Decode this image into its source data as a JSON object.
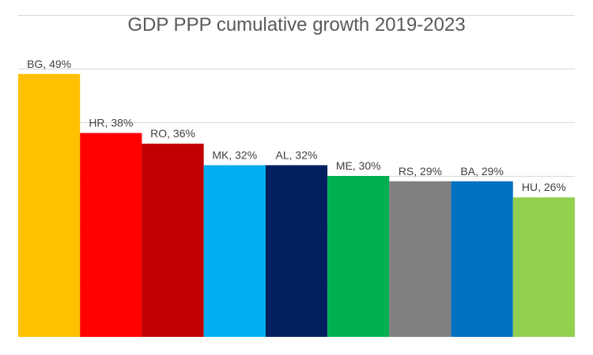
{
  "chart_data": {
    "type": "bar",
    "title": "GDP PPP cumulative growth 2019-2023",
    "xlabel": "",
    "ylabel": "",
    "ylim": [
      0,
      60
    ],
    "grid": true,
    "legend": "none",
    "categories": [
      "BG",
      "HR",
      "RO",
      "MK",
      "AL",
      "ME",
      "RS",
      "BA",
      "HU"
    ],
    "values": [
      49,
      38,
      36,
      32,
      32,
      30,
      29,
      29,
      26
    ],
    "labels": [
      "BG, 49%",
      "HR, 38%",
      "RO, 36%",
      "MK, 32%",
      "AL, 32%",
      "ME, 30%",
      "RS, 29%",
      "BA, 29%",
      "HU, 26%"
    ],
    "colors": [
      "#FFC000",
      "#FF0000",
      "#C00000",
      "#00B0F0",
      "#002060",
      "#00B050",
      "#808080",
      "#0070C0",
      "#92D050"
    ]
  }
}
